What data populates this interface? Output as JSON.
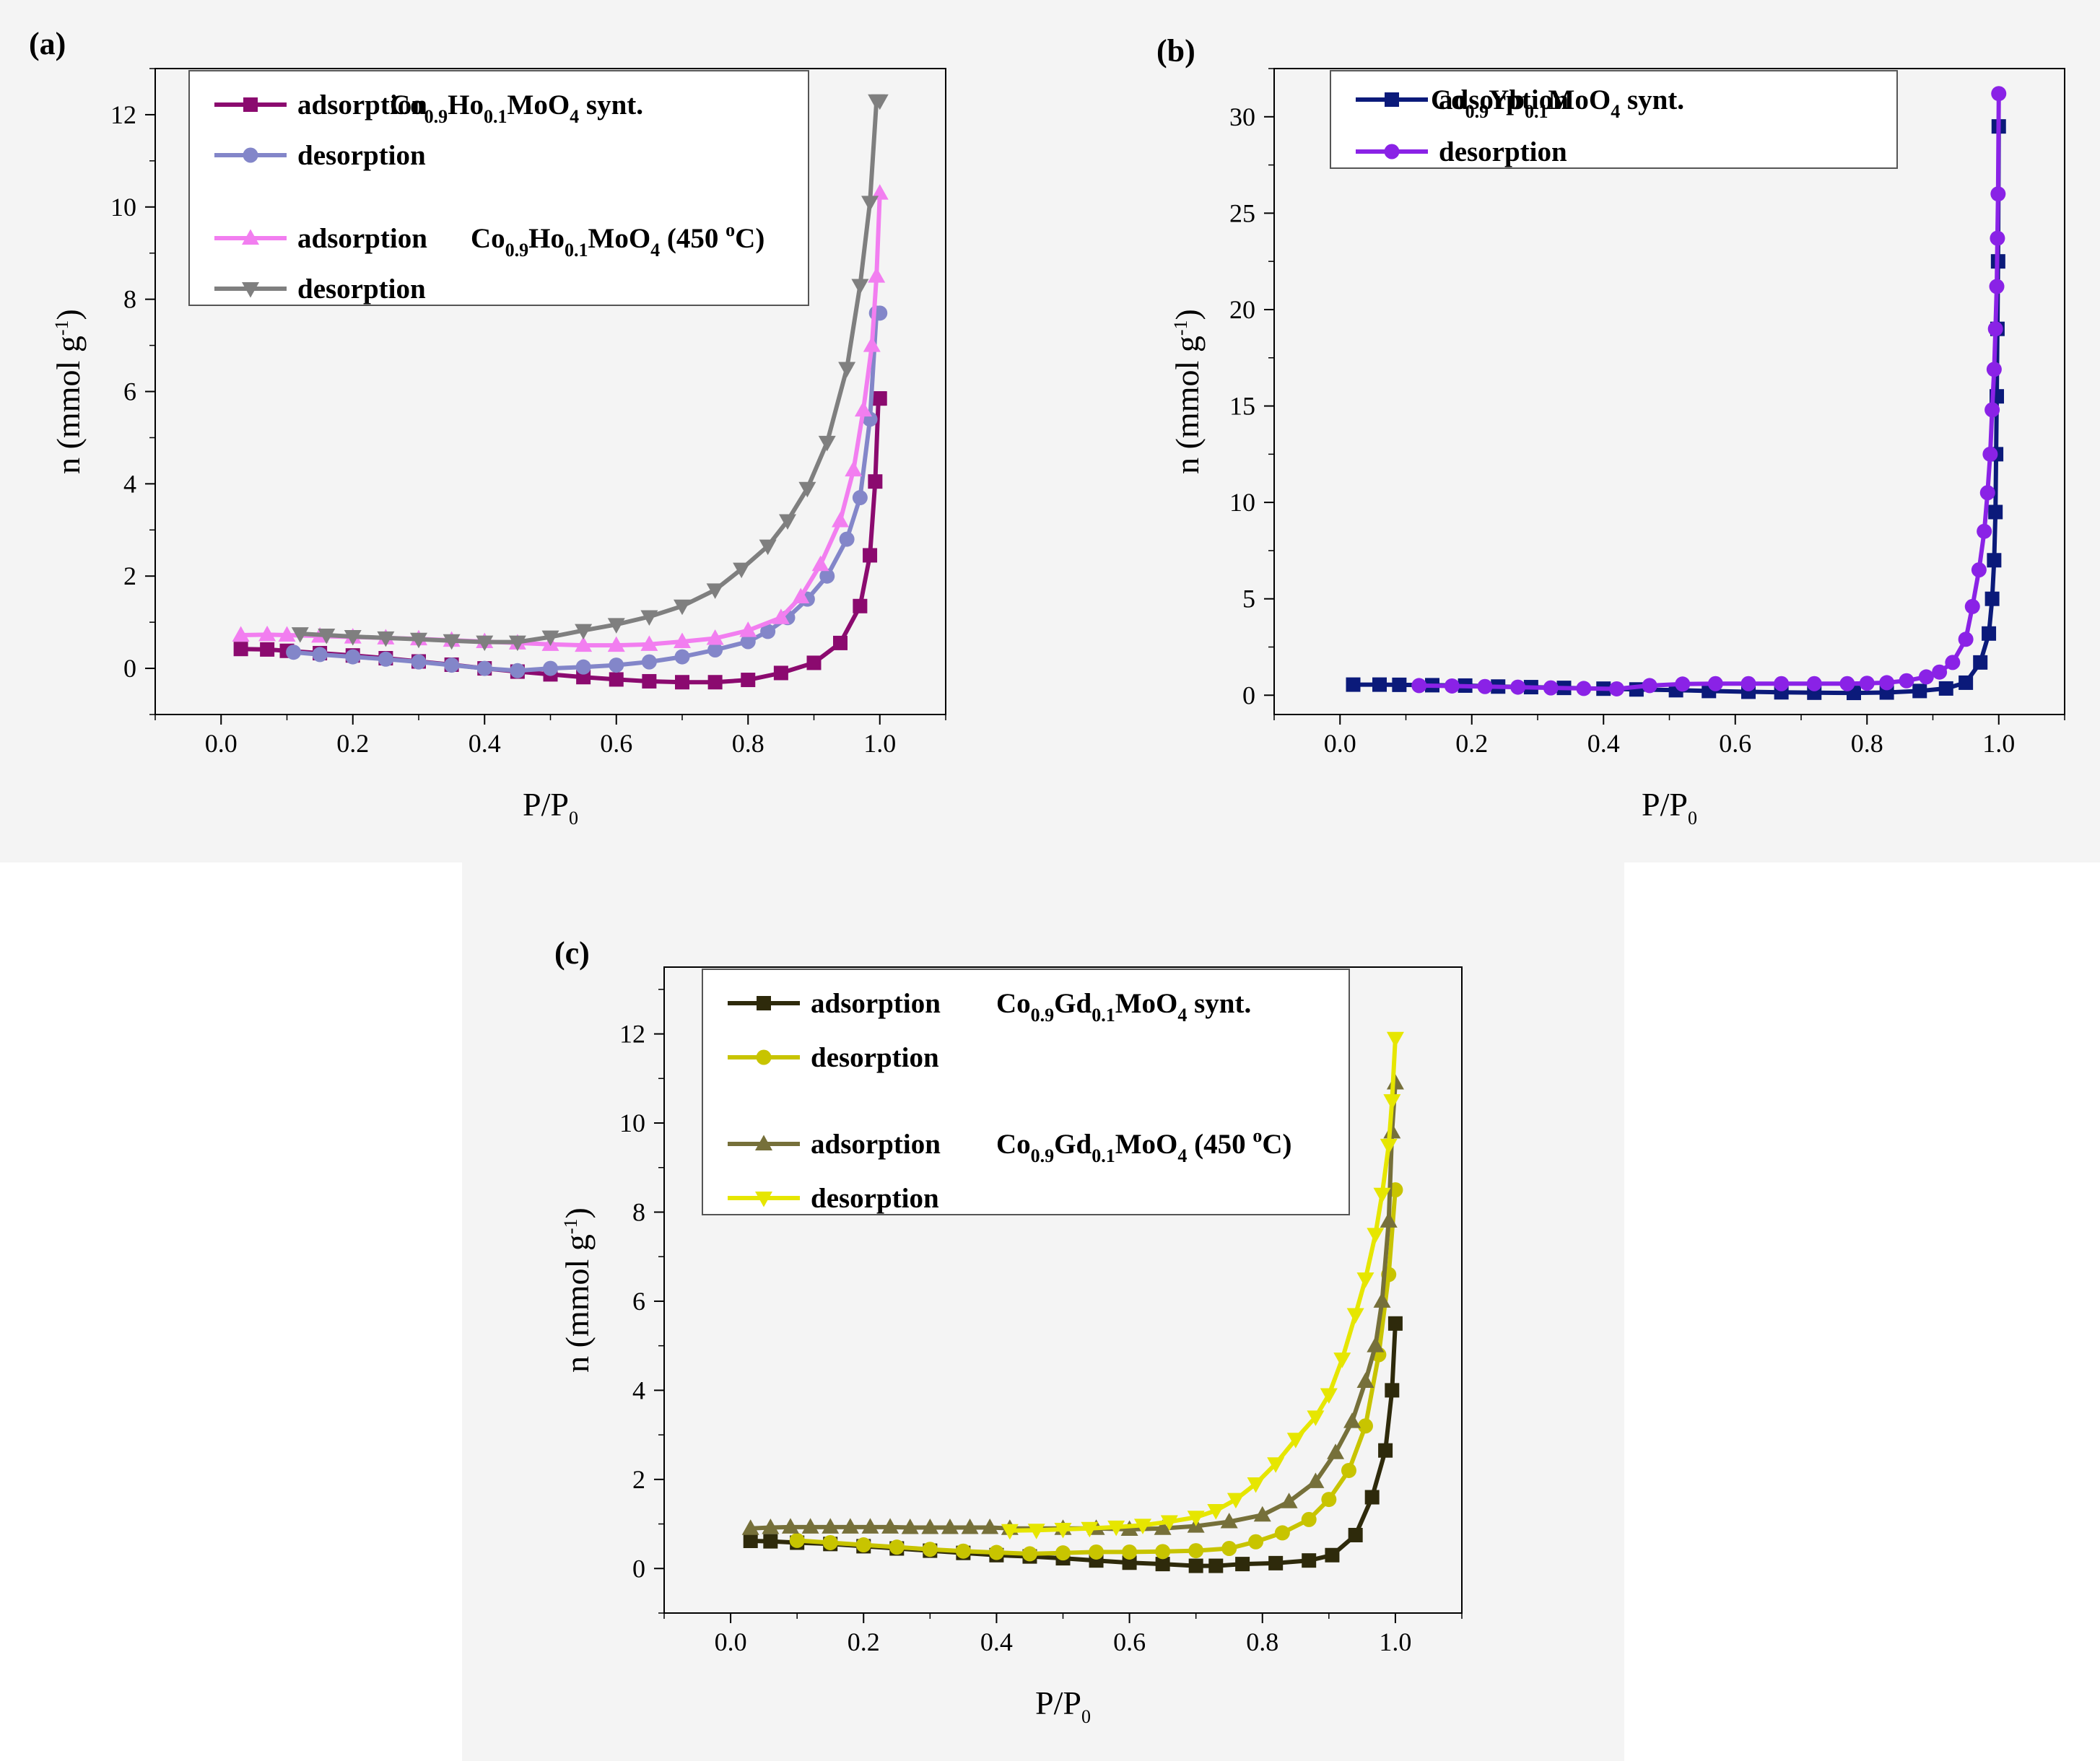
{
  "panels": [
    {
      "id": "a",
      "label": "(a)",
      "chart_data": {
        "type": "line",
        "title": "",
        "xlabel": "P/P0",
        "ylabel": "n (mmol g-1)",
        "xlim": [
          -0.1,
          1.1
        ],
        "ylim": [
          -1,
          13
        ],
        "xticks": [
          "0.0",
          "0.2",
          "0.4",
          "0.6",
          "0.8",
          "1.0"
        ],
        "yticks": [
          "0",
          "2",
          "4",
          "6",
          "8",
          "10",
          "12"
        ],
        "legend_position": "top-left",
        "legend_groups": [
          {
            "material": "Co0.9Ho0.1MoO4",
            "condition": "synt.",
            "series": [
              "adsorption",
              "desorption"
            ]
          },
          {
            "material": "Co0.9Ho0.1MoO4",
            "condition": "(450 °C)",
            "series": [
              "adsorption",
              "desorption"
            ]
          }
        ],
        "series": [
          {
            "name": "adsorption",
            "group": "Co0.9Ho0.1MoO4 synt.",
            "color": "#8b0a6f",
            "marker": "square",
            "x": [
              0.03,
              0.07,
              0.1,
              0.15,
              0.2,
              0.25,
              0.3,
              0.35,
              0.4,
              0.45,
              0.5,
              0.55,
              0.6,
              0.65,
              0.7,
              0.75,
              0.8,
              0.85,
              0.9,
              0.94,
              0.97,
              0.985,
              0.993,
              0.998,
              1.0
            ],
            "y": [
              0.42,
              0.41,
              0.38,
              0.33,
              0.28,
              0.22,
              0.15,
              0.08,
              0.0,
              -0.07,
              -0.13,
              -0.19,
              -0.24,
              -0.28,
              -0.3,
              -0.3,
              -0.25,
              -0.1,
              0.12,
              0.55,
              1.35,
              2.45,
              4.05,
              5.85,
              5.85
            ]
          },
          {
            "name": "desorption",
            "group": "Co0.9Ho0.1MoO4 synt.",
            "color": "#8386c9",
            "marker": "circle",
            "x": [
              0.11,
              0.15,
              0.2,
              0.25,
              0.3,
              0.35,
              0.4,
              0.45,
              0.5,
              0.55,
              0.6,
              0.65,
              0.7,
              0.75,
              0.8,
              0.83,
              0.86,
              0.89,
              0.92,
              0.95,
              0.97,
              0.985,
              0.995,
              1.0
            ],
            "y": [
              0.35,
              0.3,
              0.25,
              0.2,
              0.14,
              0.07,
              0.0,
              -0.05,
              0.0,
              0.03,
              0.07,
              0.14,
              0.25,
              0.4,
              0.58,
              0.8,
              1.1,
              1.5,
              2.0,
              2.8,
              3.7,
              5.4,
              7.7,
              7.7
            ]
          },
          {
            "name": "adsorption",
            "group": "Co0.9Ho0.1MoO4 (450 °C)",
            "color": "#f27ef0",
            "marker": "triangle-up",
            "x": [
              0.03,
              0.07,
              0.1,
              0.15,
              0.2,
              0.25,
              0.3,
              0.35,
              0.4,
              0.45,
              0.5,
              0.55,
              0.6,
              0.65,
              0.7,
              0.75,
              0.8,
              0.85,
              0.88,
              0.91,
              0.94,
              0.96,
              0.975,
              0.988,
              0.995,
              1.0
            ],
            "y": [
              0.72,
              0.73,
              0.72,
              0.7,
              0.68,
              0.66,
              0.64,
              0.61,
              0.58,
              0.55,
              0.52,
              0.5,
              0.5,
              0.52,
              0.58,
              0.65,
              0.82,
              1.1,
              1.55,
              2.25,
              3.2,
              4.3,
              5.6,
              7.0,
              8.5,
              10.3
            ]
          },
          {
            "name": "desorption",
            "group": "Co0.9Ho0.1MoO4 (450 °C)",
            "color": "#7f7f7f",
            "marker": "triangle-down",
            "x": [
              0.12,
              0.16,
              0.2,
              0.25,
              0.3,
              0.35,
              0.4,
              0.45,
              0.5,
              0.55,
              0.6,
              0.65,
              0.7,
              0.75,
              0.79,
              0.83,
              0.86,
              0.89,
              0.92,
              0.95,
              0.97,
              0.985,
              0.995,
              1.0
            ],
            "y": [
              0.75,
              0.72,
              0.69,
              0.66,
              0.63,
              0.6,
              0.57,
              0.57,
              0.68,
              0.82,
              0.95,
              1.12,
              1.35,
              1.7,
              2.15,
              2.65,
              3.2,
              3.9,
              4.9,
              6.5,
              8.3,
              10.1,
              12.3,
              12.3
            ]
          }
        ]
      }
    },
    {
      "id": "b",
      "label": "(b)",
      "chart_data": {
        "type": "line",
        "title": "",
        "xlabel": "P/P0",
        "ylabel": "n (mmol g-1)",
        "xlim": [
          -0.1,
          1.1
        ],
        "ylim": [
          -1,
          32.5
        ],
        "xticks": [
          "0.0",
          "0.2",
          "0.4",
          "0.6",
          "0.8",
          "1.0"
        ],
        "yticks": [
          "0",
          "5",
          "10",
          "15",
          "20",
          "25",
          "30"
        ],
        "legend_position": "top-left",
        "legend_groups": [
          {
            "material": "Co0.9Yb0.1MoO4",
            "condition": "synt.",
            "series": [
              "adsorption",
              "desorption"
            ]
          }
        ],
        "series": [
          {
            "name": "adsorption",
            "group": "Co0.9Yb0.1MoO4 synt.",
            "color": "#0b1a7a",
            "marker": "square",
            "x": [
              0.02,
              0.06,
              0.09,
              0.14,
              0.19,
              0.24,
              0.29,
              0.34,
              0.4,
              0.45,
              0.51,
              0.56,
              0.62,
              0.67,
              0.72,
              0.78,
              0.83,
              0.88,
              0.92,
              0.95,
              0.972,
              0.985,
              0.99,
              0.993,
              0.995,
              0.996,
              0.997,
              0.998,
              0.999,
              1.0
            ],
            "y": [
              0.55,
              0.55,
              0.54,
              0.52,
              0.5,
              0.45,
              0.42,
              0.38,
              0.34,
              0.3,
              0.26,
              0.22,
              0.18,
              0.15,
              0.13,
              0.12,
              0.14,
              0.22,
              0.35,
              0.65,
              1.7,
              3.2,
              5.0,
              7.0,
              9.5,
              12.5,
              15.5,
              19.0,
              22.5,
              29.5
            ]
          },
          {
            "name": "desorption",
            "group": "Co0.9Yb0.1MoO4 synt.",
            "color": "#8a22e6",
            "marker": "circle",
            "x": [
              0.12,
              0.17,
              0.22,
              0.27,
              0.32,
              0.37,
              0.42,
              0.47,
              0.52,
              0.57,
              0.62,
              0.67,
              0.72,
              0.77,
              0.8,
              0.83,
              0.86,
              0.89,
              0.91,
              0.93,
              0.95,
              0.96,
              0.97,
              0.978,
              0.983,
              0.987,
              0.99,
              0.993,
              0.995,
              0.997,
              0.998,
              0.999,
              1.0
            ],
            "y": [
              0.5,
              0.48,
              0.45,
              0.42,
              0.38,
              0.35,
              0.33,
              0.5,
              0.58,
              0.6,
              0.6,
              0.6,
              0.6,
              0.6,
              0.62,
              0.65,
              0.75,
              0.95,
              1.2,
              1.7,
              2.9,
              4.6,
              6.5,
              8.5,
              10.5,
              12.5,
              14.8,
              16.9,
              19.0,
              21.2,
              23.7,
              26.0,
              31.2
            ]
          }
        ]
      }
    },
    {
      "id": "c",
      "label": "(c)",
      "chart_data": {
        "type": "line",
        "title": "",
        "xlabel": "P/P0",
        "ylabel": "n (mmol g-1)",
        "xlim": [
          -0.1,
          1.1
        ],
        "ylim": [
          -1,
          13.5
        ],
        "xticks": [
          "0.0",
          "0.2",
          "0.4",
          "0.6",
          "0.8",
          "1.0"
        ],
        "yticks": [
          "0",
          "2",
          "4",
          "6",
          "8",
          "10",
          "12"
        ],
        "legend_position": "top-left",
        "legend_groups": [
          {
            "material": "Co0.9Gd0.1MoO4",
            "condition": "synt.",
            "series": [
              "adsorption",
              "desorption"
            ]
          },
          {
            "material": "Co0.9Gd0.1MoO4",
            "condition": "(450 °C)",
            "series": [
              "adsorption",
              "desorption"
            ]
          }
        ],
        "series": [
          {
            "name": "adsorption",
            "group": "Co0.9Gd0.1MoO4 synt.",
            "color": "#2e2a0b",
            "marker": "square",
            "x": [
              0.03,
              0.06,
              0.1,
              0.15,
              0.2,
              0.25,
              0.3,
              0.35,
              0.4,
              0.45,
              0.5,
              0.55,
              0.6,
              0.65,
              0.7,
              0.73,
              0.77,
              0.82,
              0.87,
              0.905,
              0.94,
              0.965,
              0.985,
              0.995,
              1.0
            ],
            "y": [
              0.62,
              0.61,
              0.58,
              0.55,
              0.5,
              0.45,
              0.4,
              0.35,
              0.3,
              0.27,
              0.23,
              0.18,
              0.13,
              0.1,
              0.06,
              0.06,
              0.1,
              0.12,
              0.18,
              0.3,
              0.75,
              1.6,
              2.65,
              4.0,
              5.5
            ]
          },
          {
            "name": "desorption",
            "group": "Co0.9Gd0.1MoO4 synt.",
            "color": "#c8c400",
            "marker": "circle",
            "x": [
              0.1,
              0.15,
              0.2,
              0.25,
              0.3,
              0.35,
              0.4,
              0.45,
              0.5,
              0.55,
              0.6,
              0.65,
              0.7,
              0.75,
              0.79,
              0.83,
              0.87,
              0.9,
              0.93,
              0.955,
              0.975,
              0.99,
              1.0
            ],
            "y": [
              0.63,
              0.58,
              0.53,
              0.48,
              0.43,
              0.39,
              0.36,
              0.33,
              0.35,
              0.37,
              0.37,
              0.38,
              0.4,
              0.45,
              0.6,
              0.8,
              1.1,
              1.55,
              2.2,
              3.2,
              4.8,
              6.6,
              8.5
            ]
          },
          {
            "name": "adsorption",
            "group": "Co0.9Gd0.1MoO4 (450 °C)",
            "color": "#76703a",
            "marker": "triangle-up",
            "x": [
              0.03,
              0.06,
              0.09,
              0.12,
              0.15,
              0.18,
              0.21,
              0.24,
              0.27,
              0.3,
              0.33,
              0.36,
              0.39,
              0.42,
              0.5,
              0.55,
              0.6,
              0.65,
              0.7,
              0.75,
              0.8,
              0.84,
              0.88,
              0.91,
              0.935,
              0.955,
              0.97,
              0.98,
              0.99,
              0.995,
              1.0
            ],
            "y": [
              0.9,
              0.92,
              0.93,
              0.93,
              0.93,
              0.93,
              0.93,
              0.93,
              0.92,
              0.92,
              0.92,
              0.92,
              0.92,
              0.9,
              0.9,
              0.9,
              0.88,
              0.9,
              0.95,
              1.05,
              1.2,
              1.5,
              1.95,
              2.6,
              3.3,
              4.2,
              5.0,
              6.0,
              7.8,
              9.8,
              10.9
            ]
          },
          {
            "name": "desorption",
            "group": "Co0.9Gd0.1MoO4 (450 °C)",
            "color": "#e6e600",
            "marker": "triangle-down",
            "x": [
              0.42,
              0.46,
              0.5,
              0.54,
              0.58,
              0.62,
              0.66,
              0.7,
              0.73,
              0.76,
              0.79,
              0.82,
              0.85,
              0.88,
              0.9,
              0.92,
              0.94,
              0.955,
              0.97,
              0.98,
              0.99,
              0.995,
              1.0
            ],
            "y": [
              0.85,
              0.86,
              0.88,
              0.9,
              0.93,
              0.97,
              1.05,
              1.15,
              1.3,
              1.55,
              1.9,
              2.35,
              2.9,
              3.4,
              3.9,
              4.7,
              5.7,
              6.5,
              7.5,
              8.4,
              9.5,
              10.5,
              11.9
            ]
          }
        ]
      }
    }
  ]
}
